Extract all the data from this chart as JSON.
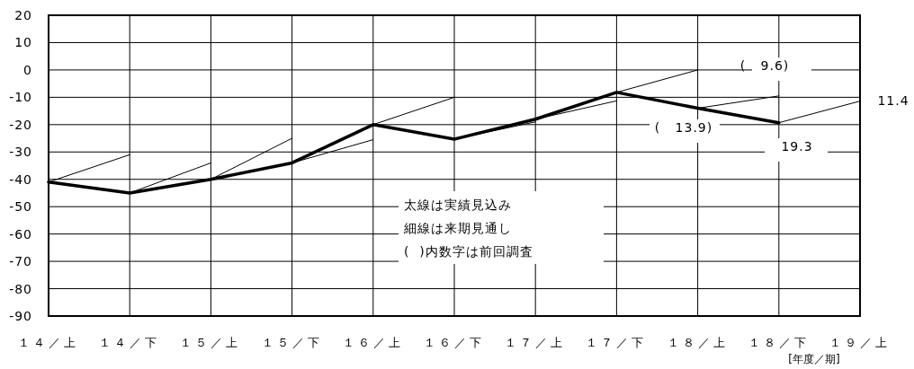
{
  "chart_data": {
    "type": "line",
    "categories": [
      "１４／上",
      "１４／下",
      "１５／上",
      "１５／下",
      "１６／上",
      "１６／下",
      "１７／上",
      "１７／下",
      "１８／上",
      "１８／下",
      "１９／上"
    ],
    "series": [
      {
        "color": "#000000",
        "values": [
          -41,
          -45,
          -40,
          -34,
          -20,
          -25.3,
          -18,
          -8.2,
          -14,
          -19.3,
          null
        ]
      },
      {
        "color": "#000000",
        "values": [
          -41,
          -31,
          null,
          null,
          null,
          null,
          null,
          null,
          null,
          null,
          null
        ]
      },
      {
        "color": "#000000",
        "values": [
          null,
          -45,
          -34,
          null,
          null,
          null,
          null,
          null,
          null,
          null,
          null
        ]
      },
      {
        "color": "#000000",
        "values": [
          null,
          null,
          -40,
          -25,
          null,
          null,
          null,
          null,
          null,
          null,
          null
        ]
      },
      {
        "color": "#000000",
        "values": [
          null,
          null,
          null,
          -34,
          -25.5,
          null,
          null,
          null,
          null,
          null,
          null
        ]
      },
      {
        "color": "#000000",
        "values": [
          null,
          null,
          null,
          null,
          -20,
          -10,
          null,
          null,
          null,
          null,
          null
        ]
      },
      {
        "color": "#000000",
        "values": [
          null,
          null,
          null,
          null,
          null,
          -25.3,
          -19,
          null,
          null,
          null,
          null
        ]
      },
      {
        "color": "#000000",
        "values": [
          null,
          null,
          null,
          null,
          null,
          null,
          -18,
          -11.3,
          null,
          null,
          null
        ]
      },
      {
        "color": "#000000",
        "values": [
          null,
          null,
          null,
          null,
          null,
          null,
          null,
          -8.2,
          0,
          null,
          null
        ]
      },
      {
        "color": "#000000",
        "values": [
          null,
          null,
          null,
          null,
          null,
          null,
          null,
          null,
          -14,
          -9.5,
          null
        ]
      },
      {
        "color": "#000000",
        "values": [
          null,
          null,
          null,
          null,
          null,
          null,
          null,
          null,
          null,
          -19.3,
          -11.4
        ]
      }
    ],
    "ylim": [
      -90,
      20
    ],
    "yticks": [
      -90,
      -80,
      -70,
      -60,
      -50,
      -40,
      -30,
      -20,
      -10,
      0,
      10,
      20
    ],
    "grid": true,
    "marker": "none",
    "line_style": "solid",
    "xlabel": "[年度／期]",
    "annotations": [
      "(   9.6)",
      "(   13.9)",
      "19.3",
      "11.4",
      "太線は実績見込み",
      "細線は来期見通し",
      "(  )内数字は前回調査"
    ]
  }
}
